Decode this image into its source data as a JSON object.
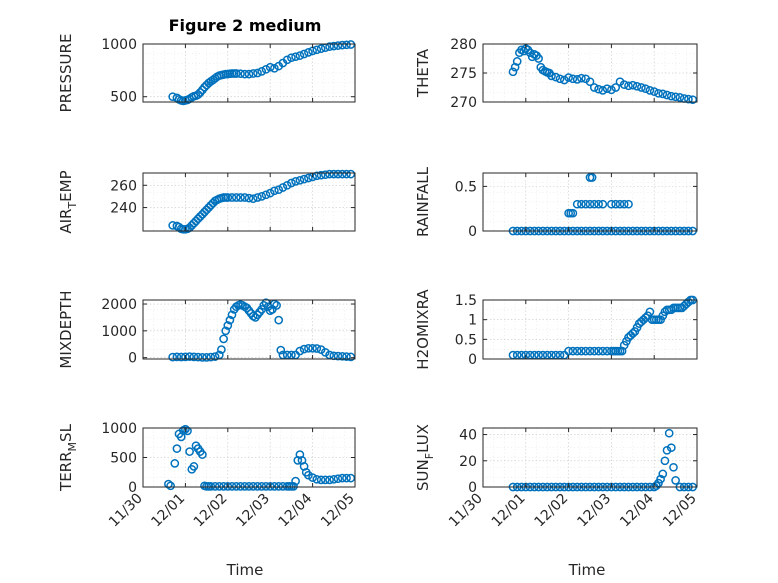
{
  "figure": {
    "title": "Figure 2 medium",
    "marker_color": "#0072BD",
    "xlabel": "Time",
    "xtick_labels": [
      "11/30",
      "12/01",
      "12/02",
      "12/03",
      "12/04",
      "12/05"
    ],
    "xlim": [
      0,
      5
    ]
  },
  "chart_data": [
    {
      "type": "scatter",
      "ylabel": "PRESSURE",
      "ylim": [
        450,
        1000
      ],
      "yticks": [
        500,
        1000
      ],
      "ytick_labels": [
        "500",
        "1000"
      ],
      "grid": true,
      "x": [
        0.7,
        0.8,
        0.85,
        0.9,
        0.95,
        1.0,
        1.05,
        1.1,
        1.15,
        1.2,
        1.25,
        1.3,
        1.35,
        1.4,
        1.45,
        1.5,
        1.55,
        1.6,
        1.65,
        1.7,
        1.75,
        1.8,
        1.85,
        1.9,
        1.95,
        2.0,
        2.05,
        2.1,
        2.15,
        2.2,
        2.3,
        2.4,
        2.5,
        2.6,
        2.7,
        2.8,
        2.9,
        3.0,
        3.1,
        3.2,
        3.3,
        3.4,
        3.5,
        3.6,
        3.7,
        3.8,
        3.9,
        4.0,
        4.1,
        4.2,
        4.3,
        4.4,
        4.5,
        4.6,
        4.7,
        4.8,
        4.9
      ],
      "y": [
        500,
        490,
        475,
        465,
        460,
        465,
        470,
        480,
        495,
        505,
        510,
        520,
        540,
        565,
        590,
        610,
        630,
        645,
        660,
        675,
        690,
        700,
        705,
        710,
        715,
        715,
        718,
        720,
        720,
        720,
        718,
        715,
        715,
        720,
        725,
        740,
        760,
        780,
        770,
        790,
        820,
        850,
        870,
        880,
        890,
        905,
        920,
        935,
        945,
        955,
        965,
        975,
        980,
        985,
        990,
        992,
        995
      ]
    },
    {
      "type": "scatter",
      "ylabel": "THETA",
      "ylim": [
        270,
        280
      ],
      "yticks": [
        270,
        275,
        280
      ],
      "ytick_labels": [
        "270",
        "275",
        "280"
      ],
      "grid": true,
      "x": [
        0.7,
        0.75,
        0.8,
        0.85,
        0.9,
        0.95,
        1.0,
        1.05,
        1.1,
        1.15,
        1.2,
        1.25,
        1.3,
        1.35,
        1.4,
        1.45,
        1.5,
        1.55,
        1.6,
        1.7,
        1.8,
        1.9,
        2.0,
        2.1,
        2.2,
        2.3,
        2.4,
        2.5,
        2.6,
        2.7,
        2.8,
        2.9,
        3.0,
        3.1,
        3.2,
        3.3,
        3.4,
        3.5,
        3.6,
        3.7,
        3.8,
        3.9,
        4.0,
        4.1,
        4.2,
        4.3,
        4.4,
        4.5,
        4.6,
        4.7,
        4.8,
        4.9
      ],
      "y": [
        275.2,
        276,
        277,
        278.5,
        279,
        278.8,
        279.2,
        279,
        278.5,
        277.8,
        278.2,
        278,
        277.5,
        276,
        275.5,
        275.3,
        275.1,
        275,
        274.5,
        274.3,
        274,
        273.8,
        274.2,
        274,
        273.9,
        274.1,
        274,
        273.5,
        272.5,
        272.2,
        272,
        272.3,
        272.1,
        272.5,
        273.5,
        273,
        272.8,
        272.9,
        272.7,
        272.5,
        272.3,
        272,
        271.8,
        271.5,
        271.4,
        271.2,
        271,
        270.9,
        270.8,
        270.6,
        270.5,
        270.4
      ]
    },
    {
      "type": "scatter",
      "ylabel": "AIR_TEMP",
      "ylim": [
        219,
        271
      ],
      "yticks": [
        240,
        260
      ],
      "ytick_labels": [
        "240",
        "260"
      ],
      "grid": true,
      "x": [
        0.7,
        0.8,
        0.85,
        0.9,
        0.95,
        1.0,
        1.05,
        1.1,
        1.15,
        1.2,
        1.25,
        1.3,
        1.35,
        1.4,
        1.45,
        1.5,
        1.55,
        1.6,
        1.65,
        1.7,
        1.75,
        1.8,
        1.85,
        1.9,
        1.95,
        2.0,
        2.1,
        2.2,
        2.3,
        2.4,
        2.5,
        2.6,
        2.7,
        2.8,
        2.9,
        3.0,
        3.1,
        3.2,
        3.3,
        3.4,
        3.5,
        3.6,
        3.7,
        3.8,
        3.9,
        4.0,
        4.1,
        4.2,
        4.3,
        4.4,
        4.5,
        4.6,
        4.7,
        4.8,
        4.9
      ],
      "y": [
        224,
        223.5,
        222.5,
        221,
        220.5,
        220.5,
        221,
        222,
        224,
        226,
        228,
        230,
        232,
        234,
        236,
        238,
        240,
        242,
        244,
        246,
        247,
        248,
        248.5,
        249,
        249,
        249,
        249,
        249,
        249,
        249,
        248.5,
        248,
        249,
        250,
        251.5,
        253,
        255,
        256,
        258,
        260,
        262,
        263.5,
        264.5,
        265.5,
        266.5,
        267.5,
        268.5,
        269,
        269.5,
        270,
        270,
        270,
        270,
        270,
        270
      ]
    },
    {
      "type": "scatter",
      "ylabel": "RAINFALL",
      "ylim": [
        0,
        0.65
      ],
      "yticks": [
        0,
        0.5
      ],
      "ytick_labels": [
        "0",
        "0.5"
      ],
      "grid": true,
      "x": [
        0.7,
        0.8,
        0.9,
        1.0,
        1.1,
        1.2,
        1.3,
        1.4,
        1.5,
        1.6,
        1.7,
        1.8,
        1.9,
        2.0,
        2.1,
        2.2,
        2.3,
        2.4,
        2.5,
        2.6,
        2.7,
        2.8,
        2.9,
        3.0,
        3.1,
        3.2,
        3.3,
        3.4,
        3.5,
        3.6,
        3.7,
        3.8,
        3.9,
        4.0,
        4.1,
        4.2,
        4.3,
        4.4,
        4.5,
        4.6,
        4.7,
        4.8,
        4.9,
        2.0,
        2.05,
        2.1,
        2.2,
        2.3,
        2.4,
        2.5,
        2.6,
        2.7,
        2.8,
        3.0,
        3.1,
        3.2,
        3.3,
        3.4,
        2.5,
        2.55
      ],
      "y": [
        0,
        0,
        0,
        0,
        0,
        0,
        0,
        0,
        0,
        0,
        0,
        0,
        0,
        0,
        0,
        0,
        0,
        0,
        0,
        0,
        0,
        0,
        0,
        0,
        0,
        0,
        0,
        0,
        0,
        0,
        0,
        0,
        0,
        0,
        0,
        0,
        0,
        0,
        0,
        0,
        0,
        0,
        0,
        0.2,
        0.2,
        0.2,
        0.3,
        0.3,
        0.3,
        0.3,
        0.3,
        0.3,
        0.3,
        0.3,
        0.3,
        0.3,
        0.3,
        0.3,
        0.6,
        0.6
      ]
    },
    {
      "type": "scatter",
      "ylabel": "MIXDEPTH",
      "ylim": [
        -50,
        2150
      ],
      "yticks": [
        0,
        1000,
        2000
      ],
      "ytick_labels": [
        "0",
        "1000",
        "2000"
      ],
      "grid": true,
      "x": [
        0.7,
        0.8,
        0.9,
        1.0,
        1.1,
        1.2,
        1.3,
        1.4,
        1.5,
        1.6,
        1.7,
        1.8,
        1.85,
        1.9,
        1.95,
        2.0,
        2.05,
        2.1,
        2.15,
        2.2,
        2.25,
        2.3,
        2.35,
        2.4,
        2.45,
        2.5,
        2.55,
        2.6,
        2.65,
        2.7,
        2.75,
        2.8,
        2.85,
        2.9,
        2.95,
        3.0,
        3.05,
        3.1,
        3.15,
        3.2,
        3.25,
        3.3,
        3.4,
        3.5,
        3.6,
        3.7,
        3.8,
        3.9,
        4.0,
        4.1,
        4.2,
        4.3,
        4.4,
        4.5,
        4.6,
        4.7,
        4.8,
        4.9
      ],
      "y": [
        20,
        30,
        25,
        30,
        40,
        30,
        20,
        10,
        10,
        20,
        40,
        100,
        300,
        700,
        1000,
        1200,
        1400,
        1600,
        1800,
        1900,
        1950,
        1980,
        1950,
        1900,
        1850,
        1750,
        1650,
        1550,
        1500,
        1600,
        1700,
        1800,
        1950,
        2050,
        1900,
        1750,
        1800,
        2000,
        1950,
        1400,
        280,
        100,
        100,
        100,
        100,
        250,
        320,
        350,
        350,
        340,
        300,
        200,
        100,
        70,
        60,
        50,
        40,
        30
      ]
    },
    {
      "type": "scatter",
      "ylabel": "H2OMIXRA",
      "ylim": [
        0,
        1.5
      ],
      "yticks": [
        0,
        0.5,
        1,
        1.5
      ],
      "ytick_labels": [
        "0",
        "0.5",
        "1",
        "1.5"
      ],
      "grid": true,
      "x": [
        0.7,
        0.8,
        0.9,
        1.0,
        1.1,
        1.2,
        1.3,
        1.4,
        1.5,
        1.6,
        1.7,
        1.8,
        1.9,
        2.0,
        2.1,
        2.2,
        2.3,
        2.4,
        2.5,
        2.6,
        2.7,
        2.8,
        2.9,
        3.0,
        3.05,
        3.1,
        3.15,
        3.2,
        3.25,
        3.3,
        3.35,
        3.4,
        3.45,
        3.5,
        3.55,
        3.6,
        3.65,
        3.7,
        3.75,
        3.8,
        3.85,
        3.9,
        3.95,
        4.0,
        4.05,
        4.1,
        4.15,
        4.2,
        4.25,
        4.3,
        4.35,
        4.4,
        4.45,
        4.5,
        4.55,
        4.6,
        4.65,
        4.7,
        4.75,
        4.8,
        4.85,
        4.9
      ],
      "y": [
        0.1,
        0.1,
        0.1,
        0.1,
        0.1,
        0.1,
        0.1,
        0.1,
        0.1,
        0.1,
        0.1,
        0.1,
        0.1,
        0.2,
        0.2,
        0.2,
        0.2,
        0.2,
        0.2,
        0.2,
        0.2,
        0.2,
        0.2,
        0.2,
        0.2,
        0.2,
        0.2,
        0.2,
        0.2,
        0.35,
        0.45,
        0.55,
        0.6,
        0.65,
        0.7,
        0.8,
        0.9,
        0.95,
        1.0,
        1.05,
        1.1,
        1.2,
        1.0,
        1.0,
        1.0,
        1.0,
        1.0,
        1.1,
        1.2,
        1.25,
        1.25,
        1.25,
        1.3,
        1.3,
        1.3,
        1.3,
        1.3,
        1.35,
        1.4,
        1.45,
        1.5,
        1.5
      ]
    },
    {
      "type": "scatter",
      "ylabel": "TERR_MSL",
      "ylim": [
        0,
        1000
      ],
      "yticks": [
        0,
        500,
        1000
      ],
      "ytick_labels": [
        "0",
        "500",
        "1000"
      ],
      "grid": true,
      "x": [
        0.6,
        0.65,
        0.75,
        0.8,
        0.85,
        0.9,
        0.95,
        1.0,
        1.05,
        1.1,
        1.15,
        1.2,
        1.25,
        1.3,
        1.35,
        1.4,
        1.45,
        1.5,
        1.55,
        1.6,
        1.7,
        1.8,
        1.9,
        2.0,
        2.1,
        2.2,
        2.3,
        2.4,
        2.5,
        2.6,
        2.7,
        2.8,
        2.9,
        3.0,
        3.1,
        3.2,
        3.3,
        3.4,
        3.45,
        3.5,
        3.55,
        3.6,
        3.65,
        3.7,
        3.75,
        3.8,
        3.85,
        3.9,
        4.0,
        4.1,
        4.2,
        4.3,
        4.4,
        4.5,
        4.6,
        4.7,
        4.8,
        4.9
      ],
      "y": [
        50,
        20,
        400,
        650,
        900,
        850,
        960,
        980,
        950,
        600,
        300,
        350,
        700,
        650,
        600,
        550,
        20,
        10,
        10,
        10,
        10,
        10,
        10,
        10,
        10,
        10,
        10,
        10,
        10,
        10,
        10,
        10,
        10,
        10,
        10,
        10,
        10,
        10,
        10,
        10,
        10,
        100,
        450,
        550,
        450,
        350,
        250,
        200,
        160,
        130,
        120,
        120,
        120,
        130,
        140,
        150,
        150,
        150
      ]
    },
    {
      "type": "scatter",
      "ylabel": "SUN_FLUX",
      "ylim": [
        0,
        45
      ],
      "yticks": [
        0,
        20,
        40
      ],
      "ytick_labels": [
        "0",
        "20",
        "40"
      ],
      "grid": true,
      "x": [
        0.7,
        0.8,
        0.9,
        1.0,
        1.1,
        1.2,
        1.3,
        1.4,
        1.5,
        1.6,
        1.7,
        1.8,
        1.9,
        2.0,
        2.1,
        2.2,
        2.3,
        2.4,
        2.5,
        2.6,
        2.7,
        2.8,
        2.9,
        3.0,
        3.1,
        3.2,
        3.3,
        3.4,
        3.5,
        3.6,
        3.7,
        3.8,
        3.9,
        4.0,
        4.05,
        4.1,
        4.15,
        4.2,
        4.25,
        4.3,
        4.35,
        4.4,
        4.45,
        4.5,
        4.6,
        4.7,
        4.8,
        4.9
      ],
      "y": [
        0,
        0,
        0,
        0,
        0,
        0,
        0,
        0,
        0,
        0,
        0,
        0,
        0,
        0,
        0,
        0,
        0,
        0,
        0,
        0,
        0,
        0,
        0,
        0,
        0,
        0,
        0,
        0,
        0,
        0,
        0,
        0,
        0,
        0,
        1,
        3,
        6,
        10,
        20,
        28,
        41,
        30,
        15,
        5,
        0,
        0,
        0,
        0
      ]
    }
  ]
}
